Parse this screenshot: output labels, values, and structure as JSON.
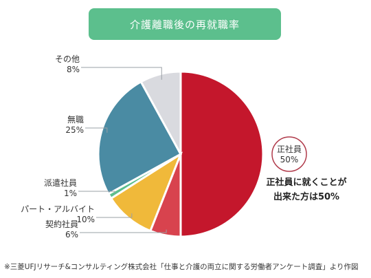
{
  "chart_data": {
    "type": "pie",
    "title": "介護離職後の再就職率",
    "slices": [
      {
        "label": "正社員",
        "value": 50,
        "value_text": "50%",
        "color": "#c4172c"
      },
      {
        "label": "契約社員",
        "value": 6,
        "value_text": "6%",
        "color": "#d8434e"
      },
      {
        "label": "パート・アルバイト",
        "value": 10,
        "value_text": "10%",
        "color": "#f0b93a"
      },
      {
        "label": "派遣社員",
        "value": 1,
        "value_text": "1%",
        "color": "#5cbf8d"
      },
      {
        "label": "無職",
        "value": 25,
        "value_text": "25%",
        "color": "#4a8ba3"
      },
      {
        "label": "その他",
        "value": 8,
        "value_text": "8%",
        "color": "#d9dadf"
      }
    ],
    "start_angle_deg": 0,
    "direction": "clockwise"
  },
  "annotation": {
    "line1": "正社員に就くことが",
    "line2": "出来た方は50%"
  },
  "footnote": "※三菱UFJリサーチ&コンサルティング株式会社「仕事と介護の両立に関する労働者アンケート調査」より作図"
}
